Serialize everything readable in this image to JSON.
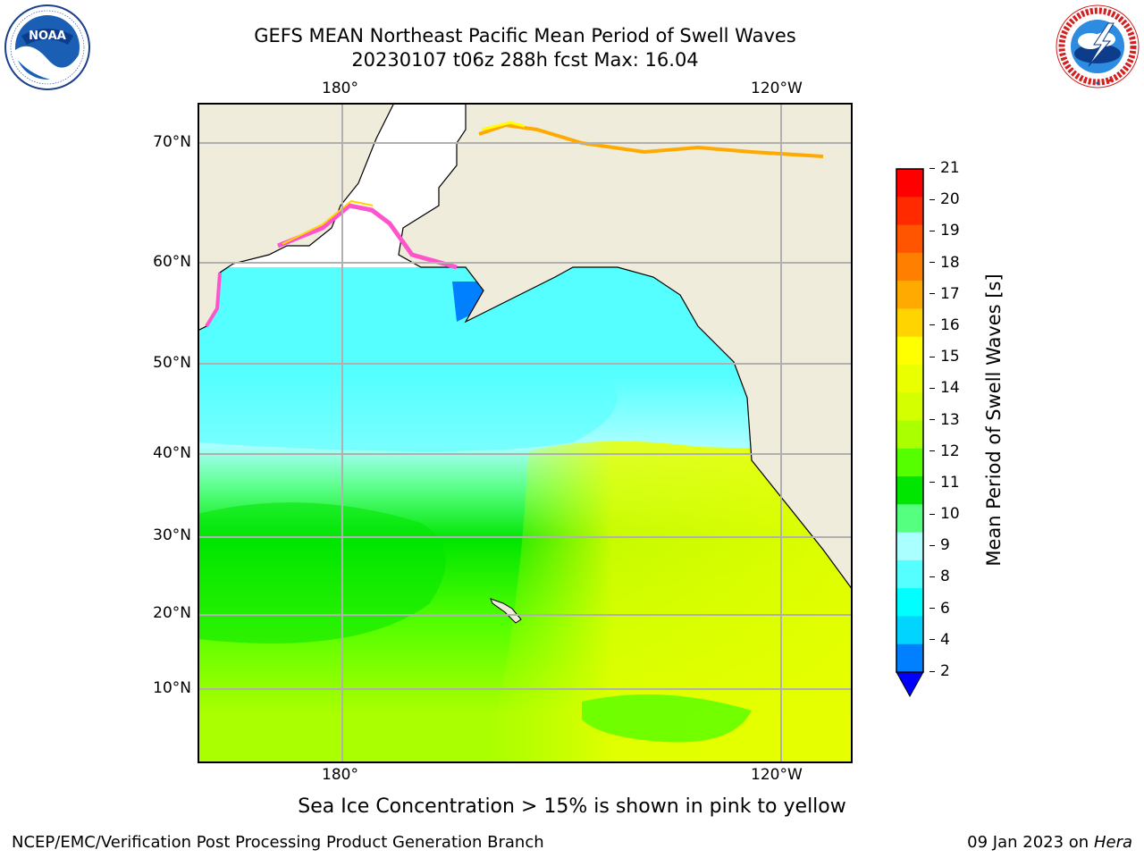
{
  "header": {
    "title_line1": "GEFS MEAN Northeast Pacific Mean Period of Swell Waves",
    "title_line2": "20230107 t06z 288h fcst   Max: 16.04"
  },
  "logos": {
    "left": {
      "name": "noaa-logo",
      "text": "NOAA",
      "ring_text": "NATIONAL OCEANIC AND ATMOSPHERIC ADMINISTRATION · U.S. DEPARTMENT OF COMMERCE"
    },
    "right": {
      "name": "nws-logo",
      "ring_text": "NATIONAL WEATHER SERVICE"
    }
  },
  "map": {
    "lon_labels_top": [
      "180°",
      "120°W"
    ],
    "lon_labels_bottom": [
      "180°",
      "120°W"
    ],
    "lat_labels": [
      "70°N",
      "60°N",
      "50°N",
      "40°N",
      "30°N",
      "20°N",
      "10°N"
    ],
    "note": "Sea Ice Concentration > 15% is shown in pink to yellow"
  },
  "colorbar": {
    "label": "Mean Period of Swell Waves [s]",
    "ticks": [
      "21",
      "20",
      "19",
      "18",
      "17",
      "16",
      "15",
      "14",
      "13",
      "12",
      "11",
      "10",
      "9",
      "8",
      "6",
      "4",
      "2"
    ],
    "colors_top_to_bottom": [
      "#ff0000",
      "#ff2a00",
      "#ff5500",
      "#ff8000",
      "#ffaa00",
      "#ffd400",
      "#ffff00",
      "#eaff00",
      "#d4ff00",
      "#aaff00",
      "#55ff00",
      "#00e600",
      "#55ff80",
      "#aaffff",
      "#55ffff",
      "#00ffff",
      "#00d4ff",
      "#0080ff"
    ],
    "extend_color": "#0000ff"
  },
  "footer": {
    "left": "NCEP/EMC/Verification Post Processing Product Generation Branch",
    "right_date": "09 Jan 2023 on ",
    "right_machine": "Hera"
  }
}
